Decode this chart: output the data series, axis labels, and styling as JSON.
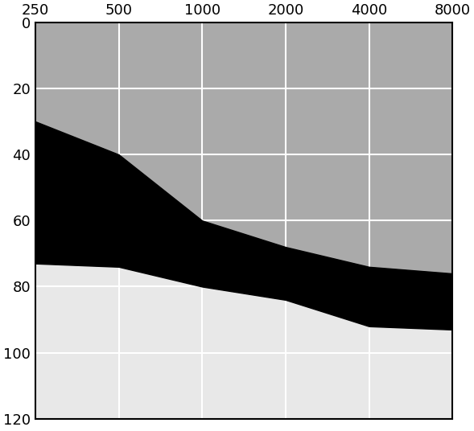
{
  "x_ticks": [
    250,
    500,
    1000,
    2000,
    4000,
    8000
  ],
  "y_ticks": [
    0,
    20,
    40,
    60,
    80,
    100,
    120
  ],
  "y_min": 0,
  "y_max": 120,
  "x_min": 250,
  "x_max": 8000,
  "color_gray": "#aaaaaa",
  "color_black": "#000000",
  "color_light": "#e8e8e8",
  "grid_color": "#ffffff",
  "upper_black_x": [
    250,
    500,
    1000,
    2000,
    4000,
    8000
  ],
  "upper_black_y": [
    30,
    40,
    60,
    68,
    74,
    76
  ],
  "lower_black_x": [
    250,
    500,
    1000,
    2000,
    4000,
    8000
  ],
  "lower_black_y": [
    73,
    74,
    80,
    84,
    92,
    93
  ]
}
